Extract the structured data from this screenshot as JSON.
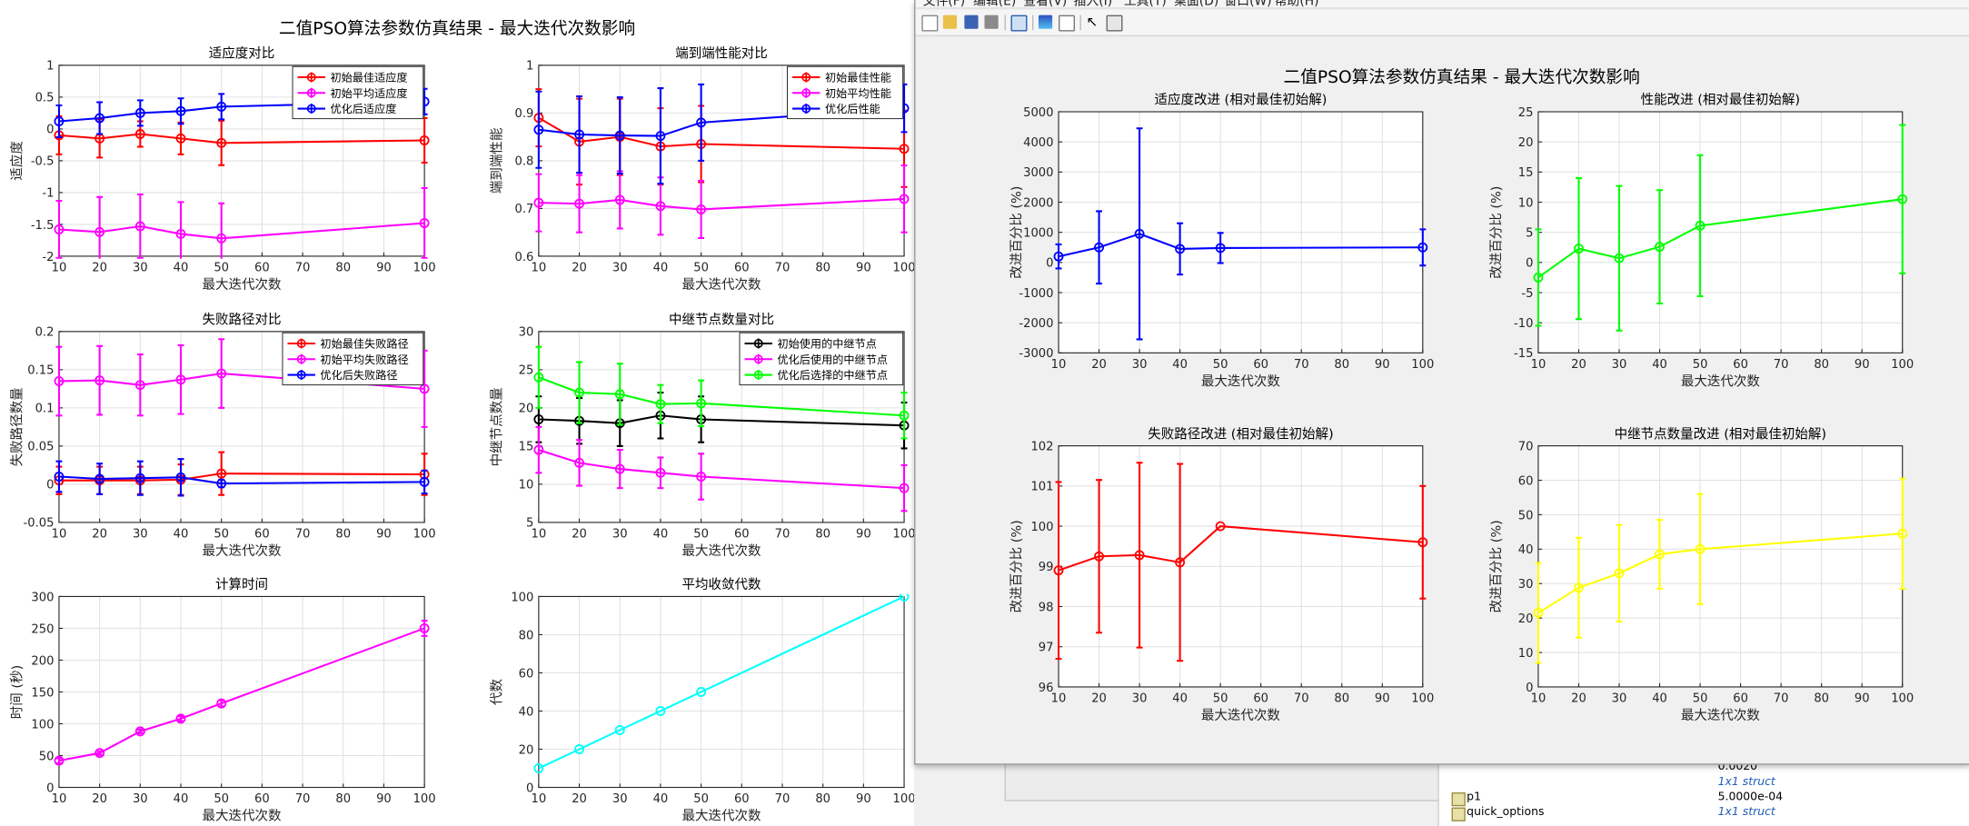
{
  "left_figure": {
    "suptitle": "二值PSO算法参数仿真结果 - 最大迭代次数影响",
    "chart_data": [
      {
        "type": "line",
        "title": "适应度对比",
        "xlabel": "最大迭代次数",
        "ylabel": "适应度",
        "x": [
          10,
          20,
          30,
          40,
          50,
          100
        ],
        "xlim": [
          10,
          100
        ],
        "ylim": [
          -2,
          1
        ],
        "xticks": [
          10,
          20,
          30,
          40,
          50,
          60,
          70,
          80,
          90,
          100
        ],
        "yticks": [
          -2,
          -1.5,
          -1,
          -0.5,
          0,
          0.5,
          1
        ],
        "grid": true,
        "legend": "top-right",
        "series": [
          {
            "name": "初始最佳适应度",
            "color": "#ff0000",
            "values": [
              -0.1,
              -0.15,
              -0.08,
              -0.15,
              -0.22,
              -0.18
            ],
            "err": [
              0.3,
              0.3,
              0.2,
              0.25,
              0.35,
              0.35
            ]
          },
          {
            "name": "初始平均适应度",
            "color": "#ff00ff",
            "values": [
              -1.58,
              -1.62,
              -1.53,
              -1.65,
              -1.72,
              -1.48
            ],
            "err": [
              0.45,
              0.55,
              0.5,
              0.5,
              0.55,
              0.55
            ]
          },
          {
            "name": "优化后适应度",
            "color": "#0000ff",
            "values": [
              0.12,
              0.17,
              0.25,
              0.28,
              0.35,
              0.43
            ],
            "err": [
              0.25,
              0.25,
              0.2,
              0.2,
              0.2,
              0.2
            ]
          }
        ]
      },
      {
        "type": "line",
        "title": "端到端性能对比",
        "xlabel": "最大迭代次数",
        "ylabel": "端到端性能",
        "x": [
          10,
          20,
          30,
          40,
          50,
          100
        ],
        "xlim": [
          10,
          100
        ],
        "ylim": [
          0.6,
          1
        ],
        "xticks": [
          10,
          20,
          30,
          40,
          50,
          60,
          70,
          80,
          90,
          100
        ],
        "yticks": [
          0.6,
          0.7,
          0.8,
          0.9,
          1
        ],
        "grid": true,
        "legend": "top-right",
        "series": [
          {
            "name": "初始最佳性能",
            "color": "#ff0000",
            "values": [
              0.89,
              0.84,
              0.85,
              0.83,
              0.835,
              0.825
            ],
            "err": [
              0.06,
              0.09,
              0.08,
              0.08,
              0.08,
              0.08
            ]
          },
          {
            "name": "初始平均性能",
            "color": "#ff00ff",
            "values": [
              0.712,
              0.71,
              0.718,
              0.705,
              0.698,
              0.72
            ],
            "err": [
              0.06,
              0.06,
              0.06,
              0.06,
              0.06,
              0.07
            ]
          },
          {
            "name": "优化后性能",
            "color": "#0000ff",
            "values": [
              0.865,
              0.855,
              0.853,
              0.852,
              0.88,
              0.91
            ],
            "err": [
              0.08,
              0.08,
              0.08,
              0.1,
              0.08,
              0.05
            ]
          }
        ]
      },
      {
        "type": "line",
        "title": "失败路径对比",
        "xlabel": "最大迭代次数",
        "ylabel": "失败路径数量",
        "x": [
          10,
          20,
          30,
          40,
          50,
          100
        ],
        "xlim": [
          10,
          100
        ],
        "ylim": [
          -0.05,
          0.2
        ],
        "xticks": [
          10,
          20,
          30,
          40,
          50,
          60,
          70,
          80,
          90,
          100
        ],
        "yticks": [
          -0.05,
          0,
          0.05,
          0.1,
          0.15,
          0.2
        ],
        "grid": true,
        "legend": "top-right",
        "series": [
          {
            "name": "初始最佳失败路径",
            "color": "#ff0000",
            "values": [
              0.005,
              0.005,
              0.005,
              0.006,
              0.014,
              0.013
            ],
            "err": [
              0.018,
              0.018,
              0.018,
              0.02,
              0.028,
              0.027
            ]
          },
          {
            "name": "初始平均失败路径",
            "color": "#ff00ff",
            "values": [
              0.135,
              0.136,
              0.13,
              0.137,
              0.145,
              0.125
            ],
            "err": [
              0.045,
              0.045,
              0.04,
              0.045,
              0.045,
              0.05
            ]
          },
          {
            "name": "优化后失败路径",
            "color": "#0000ff",
            "values": [
              0.01,
              0.007,
              0.008,
              0.009,
              0.001,
              0.003
            ],
            "err": [
              0.02,
              0.02,
              0.022,
              0.024,
              0.005,
              0.015
            ]
          }
        ]
      },
      {
        "type": "line",
        "title": "中继节点数量对比",
        "xlabel": "最大迭代次数",
        "ylabel": "中继节点数量",
        "x": [
          10,
          20,
          30,
          40,
          50,
          100
        ],
        "xlim": [
          10,
          100
        ],
        "ylim": [
          5,
          30
        ],
        "xticks": [
          10,
          20,
          30,
          40,
          50,
          60,
          70,
          80,
          90,
          100
        ],
        "yticks": [
          5,
          10,
          15,
          20,
          25,
          30
        ],
        "grid": true,
        "legend": "top-right",
        "series": [
          {
            "name": "初始使用的中继节点",
            "color": "#000000",
            "values": [
              18.5,
              18.3,
              18.0,
              19.0,
              18.5,
              17.7
            ],
            "err": [
              3.0,
              3.0,
              3.0,
              3.0,
              3.0,
              3.0
            ]
          },
          {
            "name": "优化后使用的中继节点",
            "color": "#ff00ff",
            "values": [
              14.5,
              12.8,
              12.0,
              11.5,
              11.0,
              9.5
            ],
            "err": [
              3.0,
              3.0,
              2.5,
              2.0,
              3.0,
              3.0
            ]
          },
          {
            "name": "优化后选择的中继节点",
            "color": "#00ff00",
            "values": [
              24.0,
              22.0,
              21.8,
              20.5,
              20.6,
              19.0
            ],
            "err": [
              4.0,
              4.0,
              4.0,
              2.5,
              3.0,
              3.0
            ]
          }
        ]
      },
      {
        "type": "line",
        "title": "计算时间",
        "xlabel": "最大迭代次数",
        "ylabel": "时间 (秒)",
        "x": [
          10,
          20,
          30,
          40,
          50,
          100
        ],
        "xlim": [
          10,
          100
        ],
        "ylim": [
          0,
          300
        ],
        "xticks": [
          10,
          20,
          30,
          40,
          50,
          60,
          70,
          80,
          90,
          100
        ],
        "yticks": [
          0,
          50,
          100,
          150,
          200,
          250,
          300
        ],
        "grid": true,
        "legend": "none",
        "series": [
          {
            "name": "",
            "color": "#ff00ff",
            "values": [
              42,
              54,
              88,
              108,
              132,
              250
            ],
            "err": [
              4,
              3,
              3,
              4,
              5,
              12
            ]
          }
        ]
      },
      {
        "type": "line",
        "title": "平均收敛代数",
        "xlabel": "最大迭代次数",
        "ylabel": "代数",
        "x": [
          10,
          20,
          30,
          40,
          50,
          100
        ],
        "xlim": [
          10,
          100
        ],
        "ylim": [
          0,
          100
        ],
        "xticks": [
          10,
          20,
          30,
          40,
          50,
          60,
          70,
          80,
          90,
          100
        ],
        "yticks": [
          0,
          20,
          40,
          60,
          80,
          100
        ],
        "grid": true,
        "legend": "none",
        "series": [
          {
            "name": "",
            "color": "#00ffff",
            "values": [
              10,
              20,
              30,
              40,
              50,
              100
            ],
            "err": [
              0,
              0,
              0,
              0,
              0,
              0
            ]
          }
        ]
      }
    ]
  },
  "right_figure": {
    "suptitle": "二值PSO算法参数仿真结果 - 最大迭代次数影响",
    "chart_data": [
      {
        "type": "line",
        "title": "适应度改进 (相对最佳初始解)",
        "xlabel": "最大迭代次数",
        "ylabel": "改进百分比 (%)",
        "x": [
          10,
          20,
          30,
          40,
          50,
          100
        ],
        "xlim": [
          10,
          100
        ],
        "ylim": [
          -3000,
          5000
        ],
        "xticks": [
          10,
          20,
          30,
          40,
          50,
          60,
          70,
          80,
          90,
          100
        ],
        "yticks": [
          -3000,
          -2000,
          -1000,
          0,
          1000,
          2000,
          3000,
          4000,
          5000
        ],
        "grid": true,
        "legend": "none",
        "series": [
          {
            "name": "",
            "color": "#0000ff",
            "values": [
              200,
              500,
              950,
              450,
              480,
              500
            ],
            "err": [
              400,
              1200,
              3500,
              850,
              500,
              600
            ]
          }
        ]
      },
      {
        "type": "line",
        "title": "性能改进 (相对最佳初始解)",
        "xlabel": "最大迭代次数",
        "ylabel": "改进百分比 (%)",
        "x": [
          10,
          20,
          30,
          40,
          50,
          100
        ],
        "xlim": [
          10,
          100
        ],
        "ylim": [
          -15,
          25
        ],
        "xticks": [
          10,
          20,
          30,
          40,
          50,
          60,
          70,
          80,
          90,
          100
        ],
        "yticks": [
          -15,
          -10,
          -5,
          0,
          5,
          10,
          15,
          20,
          25
        ],
        "grid": true,
        "legend": "none",
        "series": [
          {
            "name": "",
            "color": "#00ff00",
            "values": [
              -2.5,
              2.3,
              0.7,
              2.6,
              6.1,
              10.5
            ],
            "err": [
              8,
              11.7,
              12,
              9.4,
              11.7,
              12.3
            ]
          }
        ]
      },
      {
        "type": "line",
        "title": "失败路径改进 (相对最佳初始解)",
        "xlabel": "最大迭代次数",
        "ylabel": "改进百分比 (%)",
        "x": [
          10,
          20,
          30,
          40,
          50,
          100
        ],
        "xlim": [
          10,
          100
        ],
        "ylim": [
          96,
          102
        ],
        "xticks": [
          10,
          20,
          30,
          40,
          50,
          60,
          70,
          80,
          90,
          100
        ],
        "yticks": [
          96,
          97,
          98,
          99,
          100,
          101,
          102
        ],
        "grid": true,
        "legend": "none",
        "series": [
          {
            "name": "",
            "color": "#ff0000",
            "values": [
              98.9,
              99.25,
              99.28,
              99.1,
              100.0,
              99.6
            ],
            "err": [
              2.2,
              1.9,
              2.3,
              2.45,
              0,
              1.4
            ]
          }
        ]
      },
      {
        "type": "line",
        "title": "中继节点数量改进 (相对最佳初始解)",
        "xlabel": "最大迭代次数",
        "ylabel": "改进百分比 (%)",
        "x": [
          10,
          20,
          30,
          40,
          50,
          100
        ],
        "xlim": [
          10,
          100
        ],
        "ylim": [
          0,
          70
        ],
        "xticks": [
          10,
          20,
          30,
          40,
          50,
          60,
          70,
          80,
          90,
          100
        ],
        "yticks": [
          0,
          10,
          20,
          30,
          40,
          50,
          60,
          70
        ],
        "grid": true,
        "legend": "none",
        "series": [
          {
            "name": "",
            "color": "#ffff00",
            "values": [
              21.5,
              28.8,
              33.0,
              38.5,
              40.0,
              44.5
            ],
            "err": [
              14.5,
              14.5,
              14,
              10,
              16,
              16
            ]
          }
        ]
      }
    ]
  },
  "workspace": {
    "rows": [
      {
        "key": "",
        "value": "0.0020",
        "link": false
      },
      {
        "key": "",
        "value": "1x1 struct",
        "link": true
      },
      {
        "key": "p1",
        "value": "5.0000e-04",
        "link": false
      },
      {
        "key": "quick_options",
        "value": "1x1 struct",
        "link": true
      }
    ]
  },
  "menus": [
    "文件(F)",
    "编辑(E)",
    "查看(V)",
    "插入(I)",
    "工具(T)",
    "桌面(D)",
    "窗口(W)",
    "帮助(H)"
  ]
}
